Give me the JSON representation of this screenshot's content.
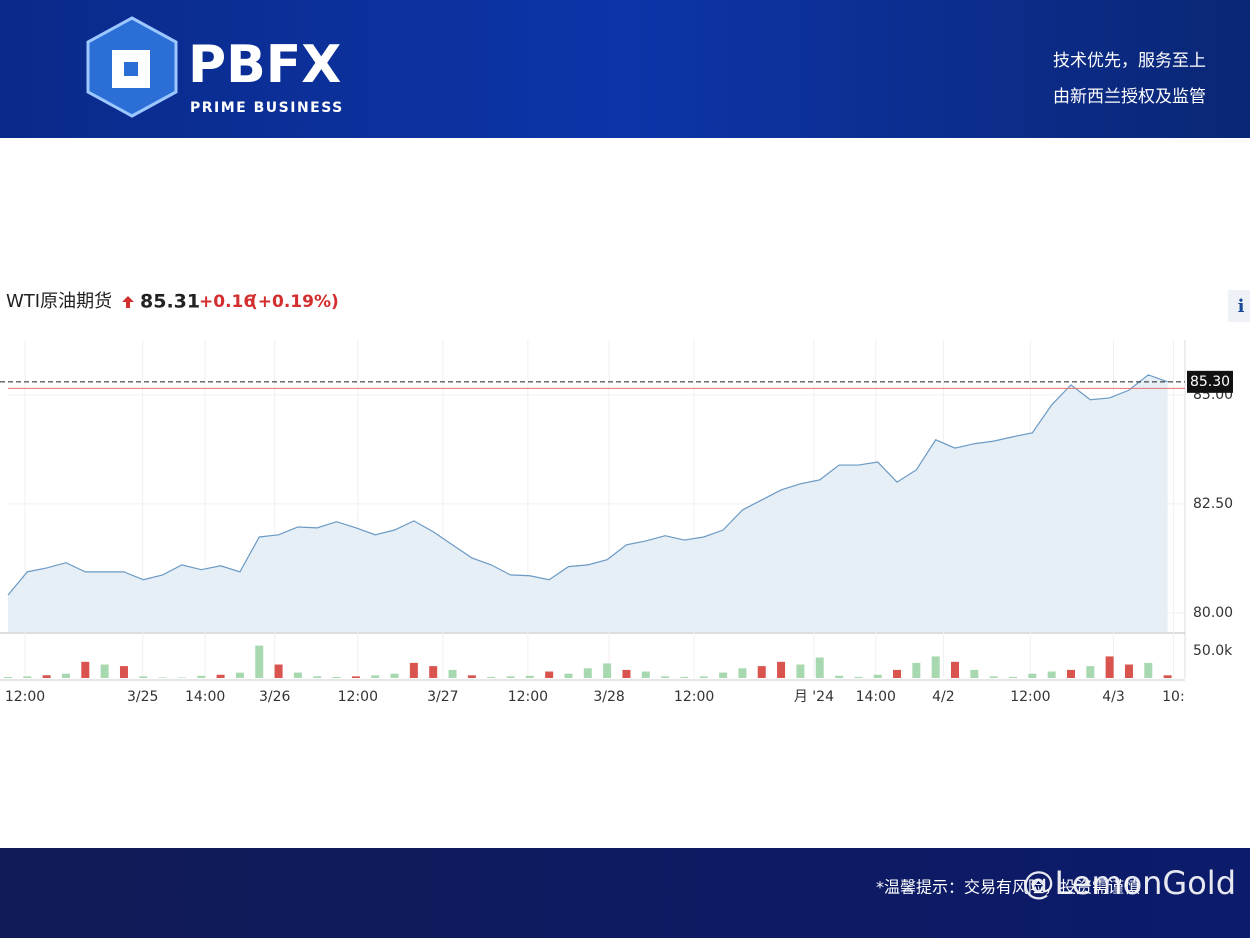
{
  "header": {
    "logo": "PBFX",
    "logo_sub": "PRIME BUSINESS",
    "tagline": [
      "技术优先，服务至上",
      "由新西兰授权及监管"
    ]
  },
  "quote": {
    "name": "WTI原油期货",
    "price": "85.31",
    "change": "+0.16",
    "change_pct": "(+0.19%)",
    "info": "i"
  },
  "footer": {
    "notice": "*温馨提示：交易有风险，投资需谨慎",
    "watermark": "@LemonGold"
  },
  "chart_data": {
    "type": "area",
    "x": [
      0,
      1,
      2,
      3,
      4,
      5,
      6,
      7,
      8,
      9,
      10,
      11,
      12,
      13,
      14,
      15,
      16,
      17,
      18,
      19,
      20,
      21,
      22,
      23,
      24,
      25,
      26,
      27,
      28,
      29,
      30,
      31,
      32,
      33,
      34,
      35,
      36,
      37,
      38,
      39,
      40,
      41,
      42,
      43,
      44,
      45,
      46,
      47,
      48,
      49,
      50,
      51,
      52,
      53,
      54,
      55,
      56,
      57,
      58,
      59,
      60
    ],
    "series": [
      {
        "color": "#6b9ac4",
        "values": [
          80.41,
          80.94,
          81.03,
          81.15,
          80.94,
          80.94,
          80.94,
          80.76,
          80.87,
          81.1,
          80.99,
          81.08,
          80.94,
          81.74,
          81.79,
          81.97,
          81.95,
          82.09,
          81.95,
          81.79,
          81.9,
          82.11,
          81.86,
          81.56,
          81.26,
          81.1,
          80.87,
          80.85,
          80.76,
          81.06,
          81.1,
          81.22,
          81.56,
          81.65,
          81.77,
          81.67,
          81.74,
          81.9,
          82.36,
          82.59,
          82.82,
          82.96,
          83.05,
          83.39,
          83.39,
          83.46,
          83.0,
          83.28,
          83.97,
          83.78,
          83.88,
          83.94,
          84.04,
          84.13,
          84.77,
          85.23,
          84.89,
          84.93,
          85.11,
          85.46,
          85.3
        ]
      }
    ],
    "volume": {
      "values": [
        2000,
        3000,
        5000,
        8000,
        30000,
        25000,
        22000,
        3000,
        1000,
        1000,
        4000,
        6000,
        10000,
        60000,
        25000,
        10000,
        3000,
        2000,
        3000,
        5000,
        8000,
        28000,
        22000,
        15000,
        5000,
        2000,
        3000,
        4000,
        12000,
        8000,
        18000,
        27000,
        15000,
        12000,
        3000,
        2000,
        3000,
        10000,
        18000,
        22000,
        30000,
        25000,
        38000,
        4000,
        2000,
        6000,
        15000,
        28000,
        40000,
        30000,
        15000,
        3000,
        2000,
        8000,
        12000,
        15000,
        22000,
        40000,
        25000,
        28000,
        5000
      ],
      "colors": [
        "#a8d8b0",
        "#a8d8b0",
        "#d9534f",
        "#a8d8b0",
        "#d9534f",
        "#a8d8b0",
        "#d9534f",
        "#a8d8b0",
        "#a8d8b0",
        "#a8d8b0",
        "#a8d8b0",
        "#d9534f",
        "#a8d8b0",
        "#a8d8b0",
        "#d9534f",
        "#a8d8b0",
        "#a8d8b0",
        "#a8d8b0",
        "#d9534f",
        "#a8d8b0",
        "#a8d8b0",
        "#d9534f",
        "#d9534f",
        "#a8d8b0",
        "#d9534f",
        "#a8d8b0",
        "#a8d8b0",
        "#a8d8b0",
        "#d9534f",
        "#a8d8b0",
        "#a8d8b0",
        "#a8d8b0",
        "#d9534f",
        "#a8d8b0",
        "#a8d8b0",
        "#a8d8b0",
        "#a8d8b0",
        "#a8d8b0",
        "#a8d8b0",
        "#d9534f",
        "#d9534f",
        "#a8d8b0",
        "#a8d8b0",
        "#a8d8b0",
        "#a8d8b0",
        "#a8d8b0",
        "#d9534f",
        "#a8d8b0",
        "#a8d8b0",
        "#d9534f",
        "#a8d8b0",
        "#a8d8b0",
        "#a8d8b0",
        "#a8d8b0",
        "#a8d8b0",
        "#d9534f",
        "#a8d8b0",
        "#d9534f",
        "#d9534f",
        "#a8d8b0",
        "#d9534f"
      ],
      "ylim": [
        0,
        55600
      ],
      "yticks": [
        {
          "value": 50000,
          "label": "50.0k"
        }
      ]
    },
    "xlim": [
      0,
      60.9
    ],
    "xticks": [
      {
        "value": 0.88,
        "label": "12:00"
      },
      {
        "value": 6.97,
        "label": "3/25"
      },
      {
        "value": 10.2,
        "label": "14:00"
      },
      {
        "value": 13.8,
        "label": "3/26"
      },
      {
        "value": 18.1,
        "label": "12:00"
      },
      {
        "value": 22.5,
        "label": "3/27"
      },
      {
        "value": 26.9,
        "label": "12:00"
      },
      {
        "value": 31.1,
        "label": "3/28"
      },
      {
        "value": 35.5,
        "label": "12:00"
      },
      {
        "value": 41.7,
        "label": "月 '24"
      },
      {
        "value": 44.9,
        "label": "14:00"
      },
      {
        "value": 48.4,
        "label": "4/2"
      },
      {
        "value": 52.9,
        "label": "12:00"
      },
      {
        "value": 57.2,
        "label": "4/3"
      },
      {
        "value": 60.3,
        "label": "10:"
      }
    ],
    "ylim": [
      79.56,
      86.26
    ],
    "yticks": [
      {
        "value": 80,
        "label": "80.00"
      },
      {
        "value": 82.5,
        "label": "82.50"
      },
      {
        "value": 85,
        "label": "85.00"
      }
    ],
    "last_price": {
      "value": 85.3,
      "label": "85.30"
    },
    "prev_close": 85.15,
    "grid": true
  }
}
